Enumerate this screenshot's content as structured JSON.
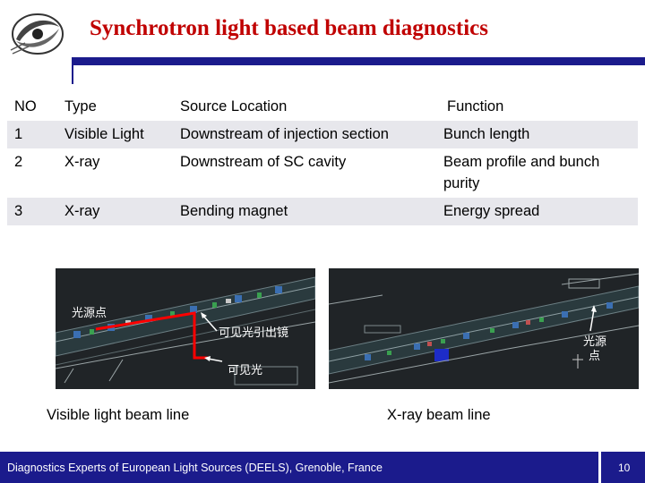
{
  "slide": {
    "title": "Synchrotron light based beam diagnostics"
  },
  "table": {
    "headers": [
      "NO",
      "Type",
      "Source Location",
      "Function"
    ],
    "rows": [
      [
        "1",
        "Visible Light",
        "Downstream of injection section",
        "Bunch length"
      ],
      [
        "2",
        "X-ray",
        "Downstream of SC cavity",
        "Beam profile and bunch purity"
      ],
      [
        "3",
        "X-ray",
        "Bending magnet",
        "Energy spread"
      ]
    ]
  },
  "images": {
    "left": {
      "source_point_label": "光源点",
      "mirror_label": "可见光引出镜",
      "visible_light_label": "可见光",
      "caption": "Visible light beam line"
    },
    "right": {
      "source_point_label": "光源\n点",
      "caption": "X-ray beam line"
    }
  },
  "footer": {
    "text": "Diagnostics Experts of European Light Sources (DEELS), Grenoble, France",
    "page_number": "10"
  },
  "colors": {
    "title": "#c00000",
    "accent_bar": "#1b1b8c",
    "table_shade": "#e7e7ec",
    "beam_path": "#ff0000",
    "image_background": "#202427"
  }
}
